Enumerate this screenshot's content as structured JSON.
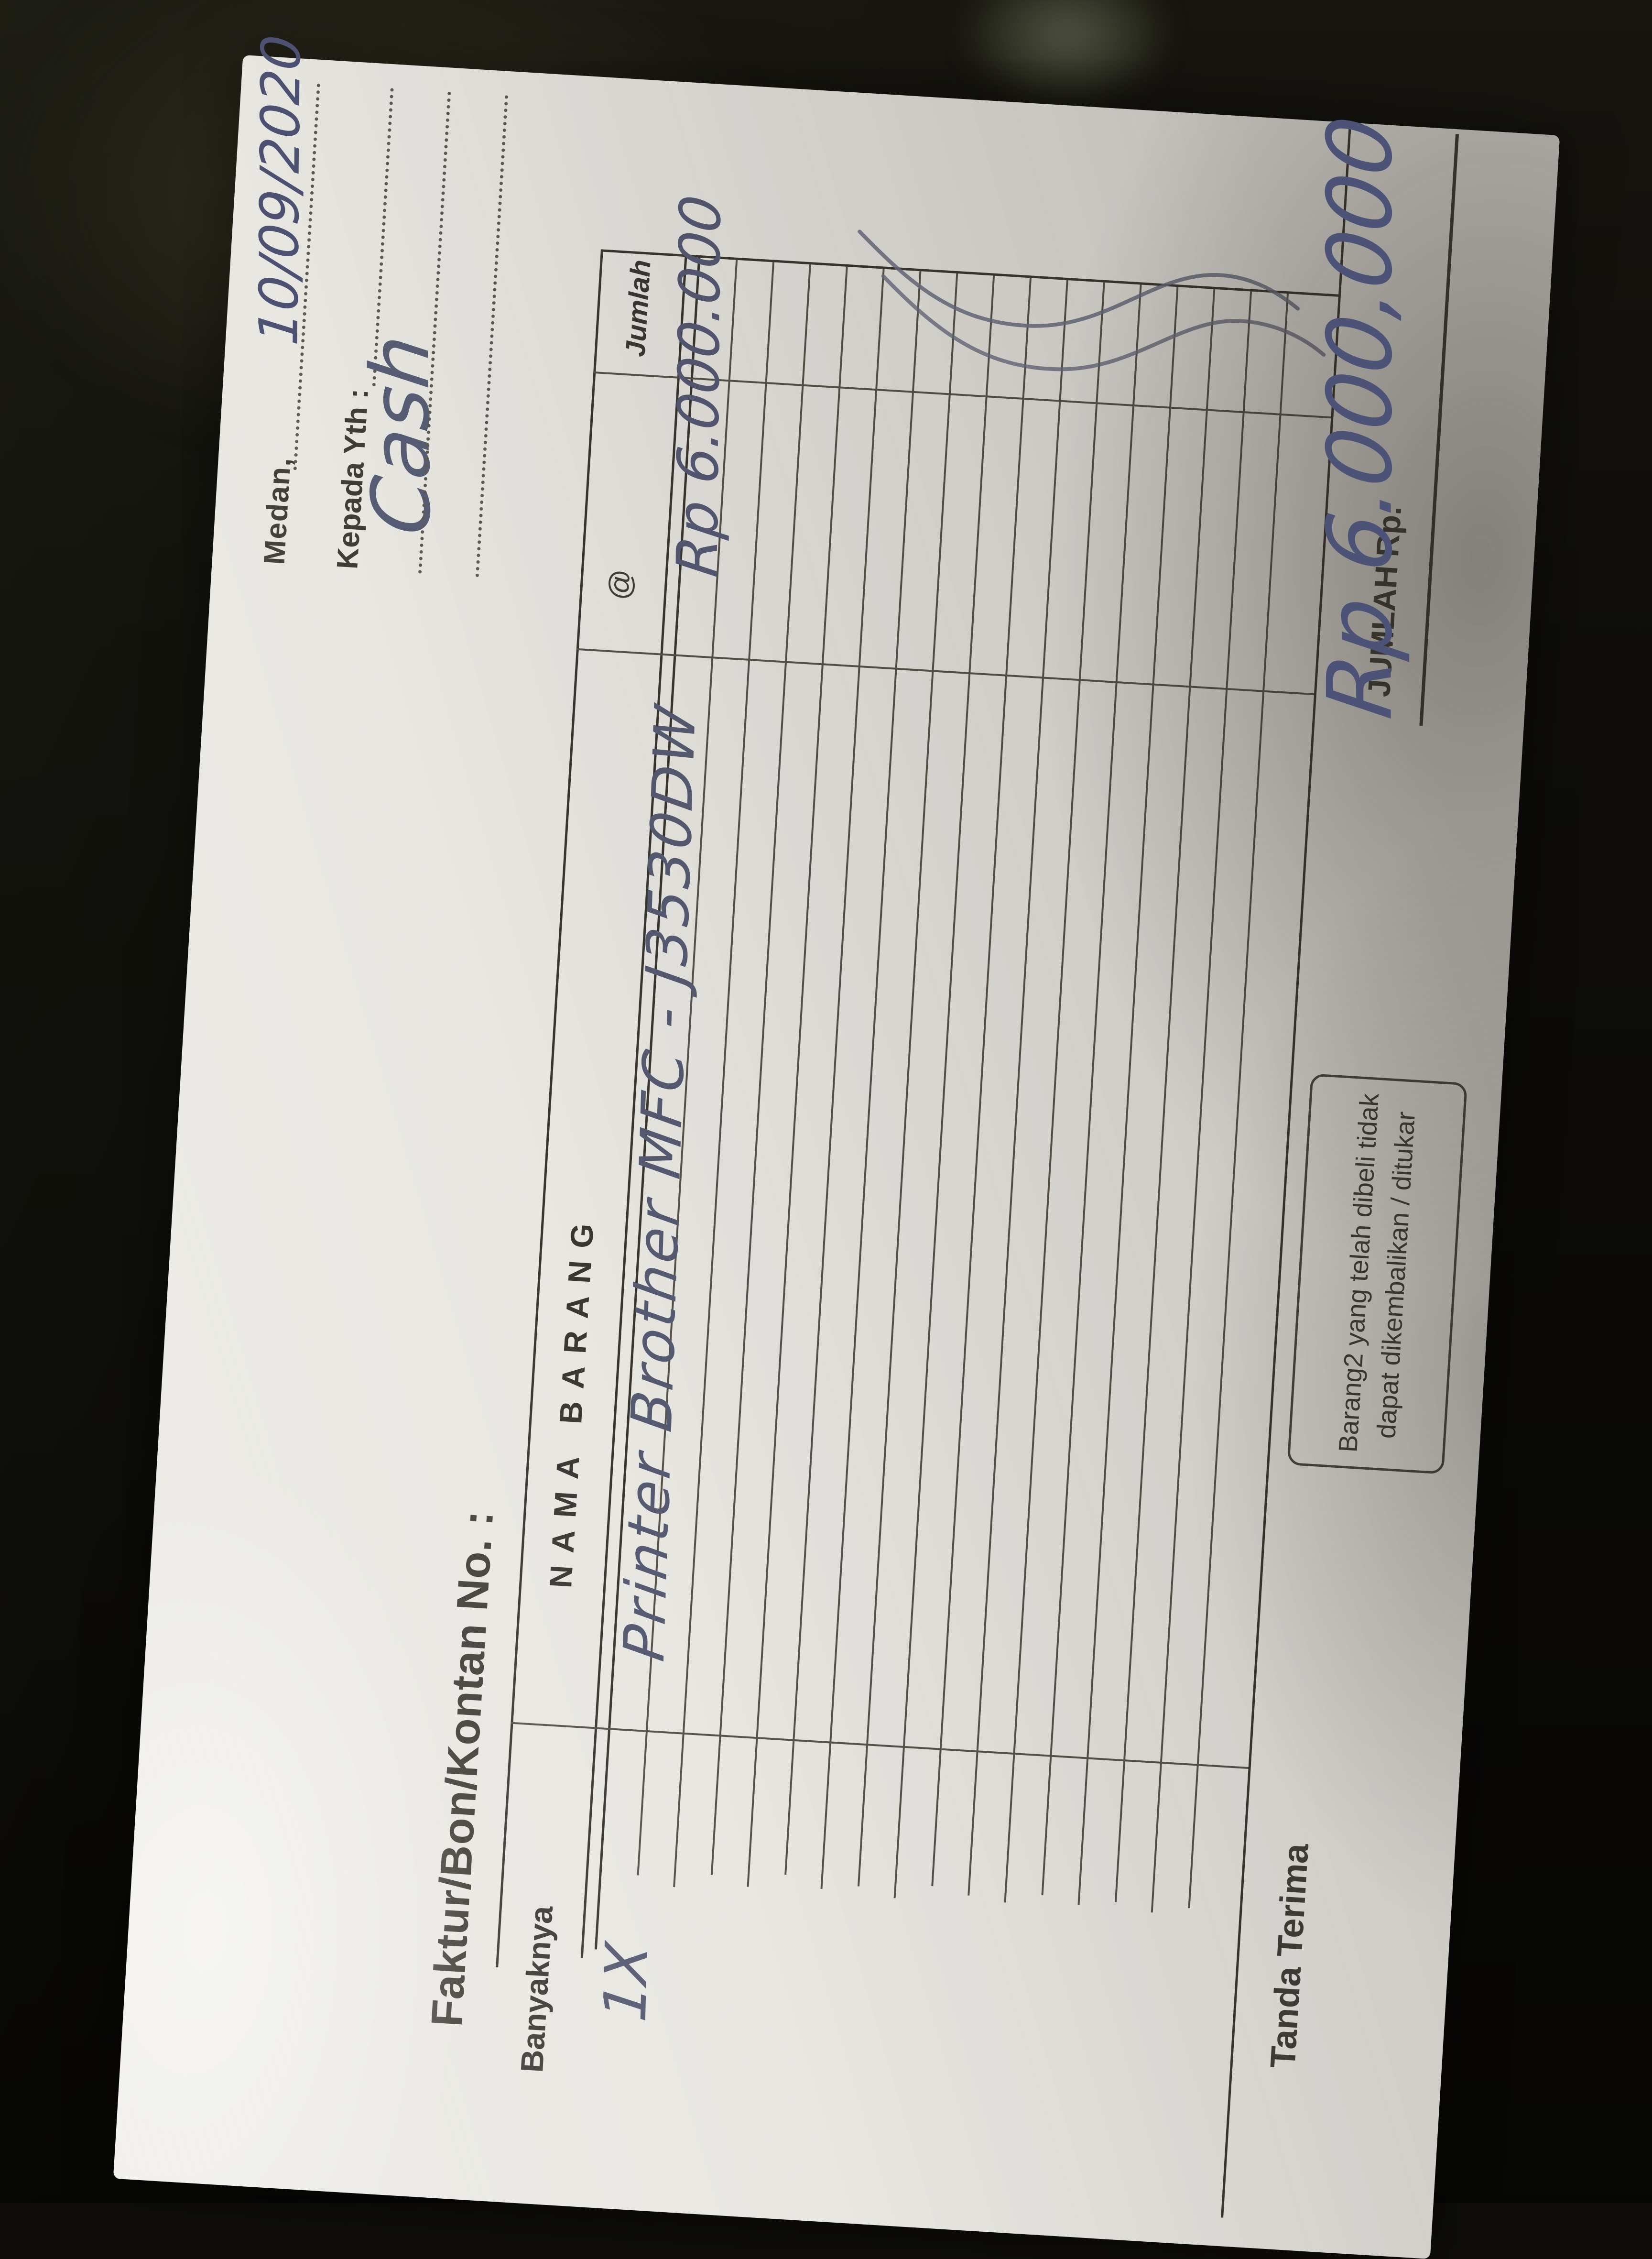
{
  "receipt": {
    "city_label": "Medan,",
    "date_handwritten": "10/09/2020",
    "addressee_label": "Kepada Yth :",
    "addressee_handwritten": "Cash",
    "title": "Faktur/Bon/Kontan No. :",
    "table": {
      "headers": {
        "qty": "Banyaknya",
        "item": "NAMA BARANG",
        "at": "@",
        "amount": "Jumlah"
      },
      "row": {
        "qty": "1X",
        "item_handwritten": "Printer  Brother   MFC - J3530DW",
        "amount_handwritten": "Rp 6.000.000"
      }
    },
    "footer": {
      "tanda_terima_label": "Tanda Terima",
      "note_line1": "Barang2 yang telah dibeli tidak",
      "note_line2": "dapat dikembalikan / ditukar",
      "jumlah_label": "JUMLAH Rp.",
      "total_handwritten": "Rp 6.000,000"
    }
  },
  "colors": {
    "paper": "#e9e7e2",
    "printed_ink": "#413d37",
    "rule_line": "#57524a",
    "border_line": "#3a362f",
    "handwriting_ink": "#565b72",
    "handwriting_blue": "#4d5273",
    "background": "#0e0d0a"
  }
}
